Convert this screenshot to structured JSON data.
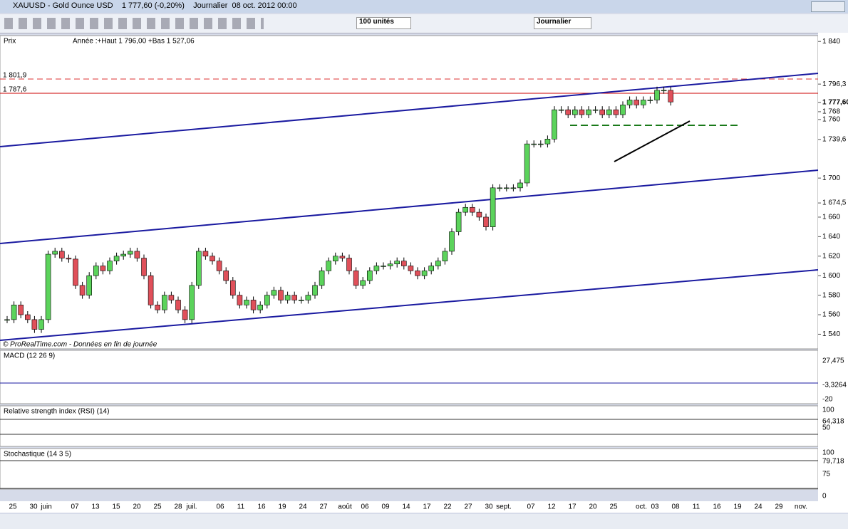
{
  "window_title": "XAUUSD - Gold Ounce USD    1 777,60 (-0,20%)    Journalier  08 oct. 2012 00:00",
  "toolbar": {
    "units": "100 unités",
    "period": "Journalier"
  },
  "price_chart": {
    "type": "candlestick",
    "name": "Prix",
    "legend": "Année :+Haut 1 796,00 +Bas 1 527,06",
    "level_labels": [
      "1 801,9",
      "1 787,6"
    ],
    "ylim": [
      1525,
      1846
    ],
    "yticks": [
      {
        "value": 1840,
        "label": "1 840"
      },
      {
        "value": 1796.3,
        "label": "1 796,3"
      },
      {
        "value": 1777.6,
        "label": "1 777,60"
      },
      {
        "value": 1768,
        "label": "1 768"
      },
      {
        "value": 1760,
        "label": "1 760"
      },
      {
        "value": 1739.6,
        "label": "1 739,6"
      },
      {
        "value": 1700,
        "label": "1 700"
      },
      {
        "value": 1674.5,
        "label": "1 674,5"
      },
      {
        "value": 1660,
        "label": "1 660"
      },
      {
        "value": 1640,
        "label": "1 640"
      },
      {
        "value": 1620,
        "label": "1 620"
      },
      {
        "value": 1600,
        "label": "1 600"
      },
      {
        "value": 1580,
        "label": "1 580"
      },
      {
        "value": 1560,
        "label": "1 560"
      },
      {
        "value": 1540,
        "label": "1 540"
      }
    ],
    "closes": [
      1555,
      1570,
      1560,
      1555,
      1545,
      1555,
      1622,
      1625,
      1618,
      1617,
      1590,
      1580,
      1600,
      1610,
      1605,
      1615,
      1620,
      1622,
      1625,
      1618,
      1600,
      1570,
      1565,
      1580,
      1575,
      1565,
      1555,
      1590,
      1625,
      1620,
      1615,
      1605,
      1595,
      1580,
      1570,
      1575,
      1565,
      1570,
      1580,
      1585,
      1575,
      1580,
      1575,
      1575,
      1580,
      1590,
      1605,
      1615,
      1620,
      1618,
      1605,
      1590,
      1595,
      1605,
      1610,
      1610,
      1612,
      1615,
      1610,
      1605,
      1600,
      1605,
      1610,
      1615,
      1625,
      1645,
      1665,
      1670,
      1665,
      1660,
      1650,
      1690,
      1690,
      1690,
      1690,
      1695,
      1735,
      1735,
      1735,
      1740,
      1770,
      1770,
      1765,
      1770,
      1765,
      1770,
      1770,
      1765,
      1770,
      1765,
      1775,
      1780,
      1775,
      1780,
      1780,
      1790,
      1790,
      1778
    ],
    "source": "© ProRealTime.com - Données en fin de journée"
  },
  "macd": {
    "name": "MACD (12 26 9)",
    "ticks": [
      "27,475",
      "-3,3264",
      "-20"
    ]
  },
  "rsi": {
    "name": "Relative strength index (RSI) (14)",
    "ticks": [
      "100",
      "64,318",
      "50"
    ]
  },
  "stochastic": {
    "name": "Stochastique (14 3 5)",
    "ticks": [
      "100",
      "79,718",
      "75",
      "0"
    ]
  },
  "x_labels": [
    "25",
    "30",
    "juin",
    "07",
    "13",
    "15",
    "20",
    "25",
    "28",
    "juil.",
    "06",
    "11",
    "16",
    "19",
    "24",
    "27",
    "août",
    "06",
    "09",
    "14",
    "17",
    "22",
    "27",
    "30",
    "sept.",
    "07",
    "12",
    "17",
    "20",
    "25",
    "oct.",
    "03",
    "08",
    "11",
    "16",
    "19",
    "24",
    "29",
    "nov."
  ]
}
